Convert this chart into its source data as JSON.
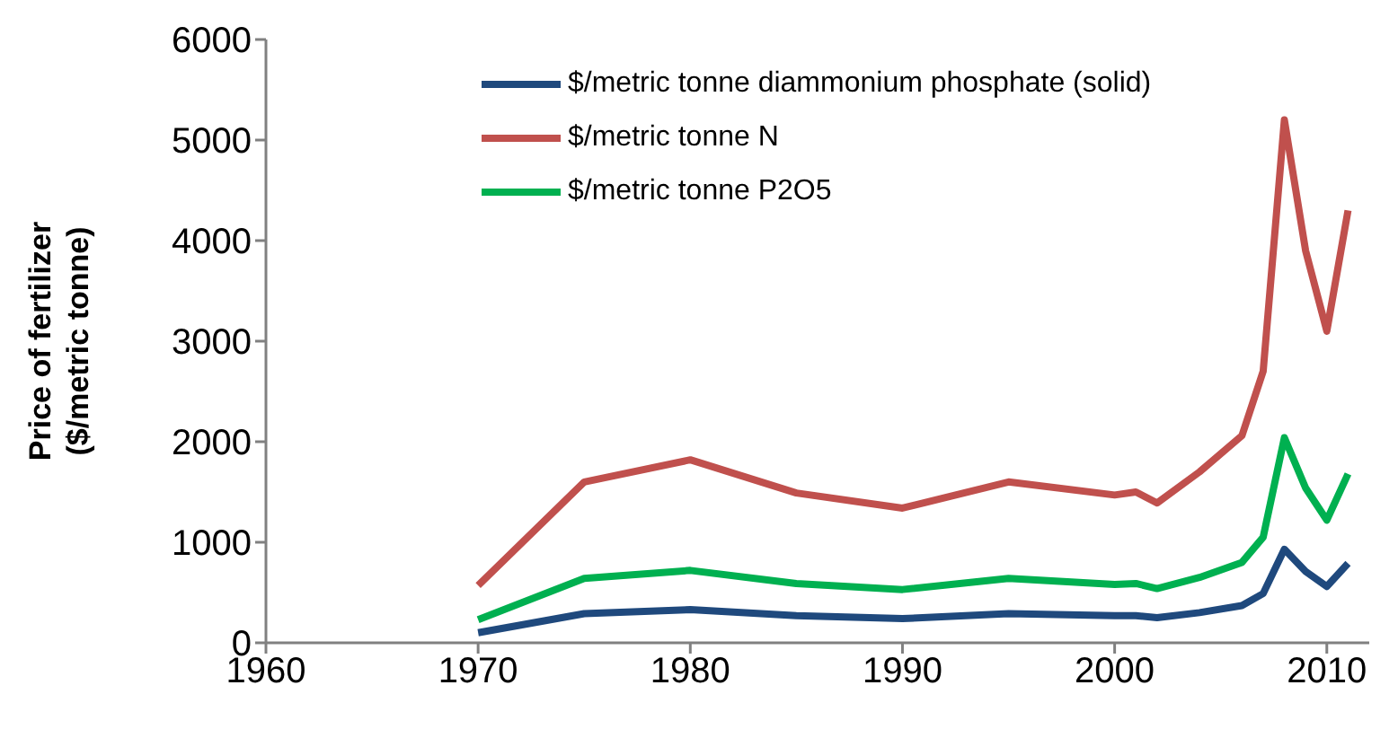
{
  "chart_data": {
    "type": "line",
    "ylabel": "Price of fertilizer\n($/metric tonne)",
    "x": [
      1970,
      1975,
      1980,
      1985,
      1990,
      1995,
      2000,
      2001,
      2002,
      2004,
      2006,
      2007,
      2008,
      2009,
      2010,
      2011
    ],
    "series": [
      {
        "name": "$/metric tonne diammonium phosphate (solid)",
        "color": "#1f497d",
        "values": [
          100,
          290,
          330,
          270,
          240,
          290,
          270,
          270,
          250,
          300,
          370,
          490,
          930,
          710,
          560,
          790
        ]
      },
      {
        "name": "$/metric tonne N",
        "color": "#c0504d",
        "values": [
          570,
          1600,
          1820,
          1490,
          1340,
          1600,
          1470,
          1500,
          1390,
          1700,
          2060,
          2700,
          5200,
          3900,
          3100,
          4300
        ]
      },
      {
        "name": "$/metric tonne P2O5",
        "color": "#00b050",
        "values": [
          230,
          640,
          720,
          590,
          530,
          640,
          580,
          590,
          540,
          650,
          800,
          1050,
          2040,
          1540,
          1220,
          1680
        ]
      }
    ],
    "xlim": [
      1960,
      2012
    ],
    "xticks": [
      1960,
      1970,
      1980,
      1990,
      2000,
      2010
    ],
    "ylim": [
      0,
      6000
    ],
    "yticks": [
      0,
      1000,
      2000,
      3000,
      4000,
      5000,
      6000
    ],
    "grid": false,
    "legend": "top",
    "marker": "none",
    "line_style": "solid"
  }
}
